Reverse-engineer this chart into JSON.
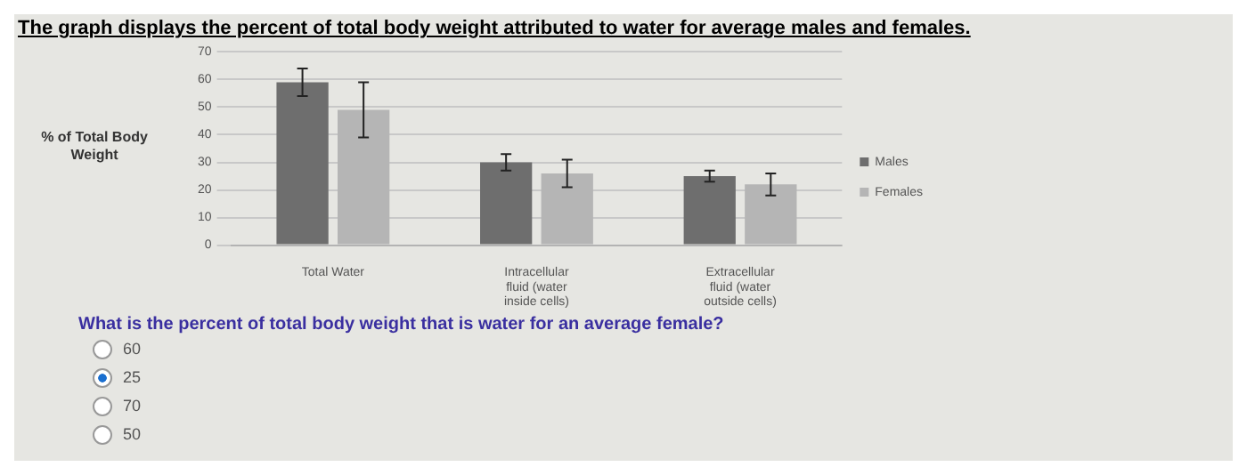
{
  "chart_data": {
    "type": "bar",
    "title": "The graph displays the percent of total body weight attributed to water for average males and females.",
    "ylabel": "% of Total Body Weight",
    "categories": [
      "Total Water",
      "Intracellular fluid (water inside cells)",
      "Extracellular fluid (water outside cells)"
    ],
    "series": [
      {
        "name": "Males",
        "color": "#6e6e6e",
        "values": [
          59,
          30,
          25
        ],
        "errors": [
          [
            54,
            64
          ],
          [
            27,
            33
          ],
          [
            23,
            27
          ]
        ]
      },
      {
        "name": "Females",
        "color": "#b5b5b5",
        "values": [
          49,
          26,
          22
        ],
        "errors": [
          [
            39,
            59
          ],
          [
            21,
            31
          ],
          [
            18,
            26
          ]
        ]
      }
    ],
    "ylim": [
      0,
      70
    ],
    "yticks": [
      0,
      10,
      20,
      30,
      40,
      50,
      60,
      70
    ],
    "grid": "y",
    "legend": "right",
    "annotations": [
      "What is the percent of total body weight that is water for an average female?",
      "60",
      "25",
      "70",
      "50"
    ]
  }
}
